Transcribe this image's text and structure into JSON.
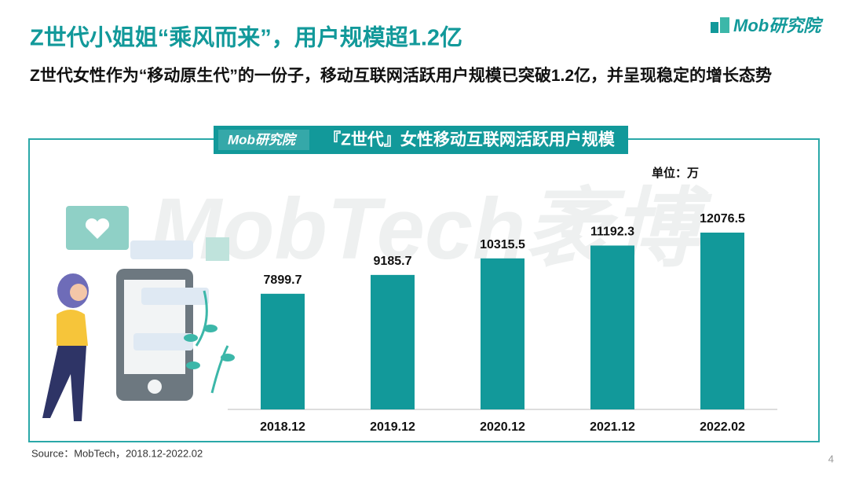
{
  "header": {
    "title": "Z世代小姐姐“乘风而来”，用户规模超1.2亿",
    "subtitle": "Z世代女性作为“移动原生代”的一份子，移动互联网活跃用户规模已突破1.2亿，并呈现稳定的增长态势",
    "logo": "Mob研究院"
  },
  "watermark": "MobTech袤博",
  "chart_badge": "Mob研究院",
  "chart_data": {
    "type": "bar",
    "title": "『Z世代』女性移动互联网活跃用户规模",
    "unit": "单位：万",
    "categories": [
      "2018.12",
      "2019.12",
      "2020.12",
      "2021.12",
      "2022.02"
    ],
    "values": [
      7899.7,
      9185.7,
      10315.5,
      11192.3,
      12076.5
    ],
    "color": "#12999a"
  },
  "source": "Source：MobTech，2018.12-2022.02",
  "page_number": "4"
}
